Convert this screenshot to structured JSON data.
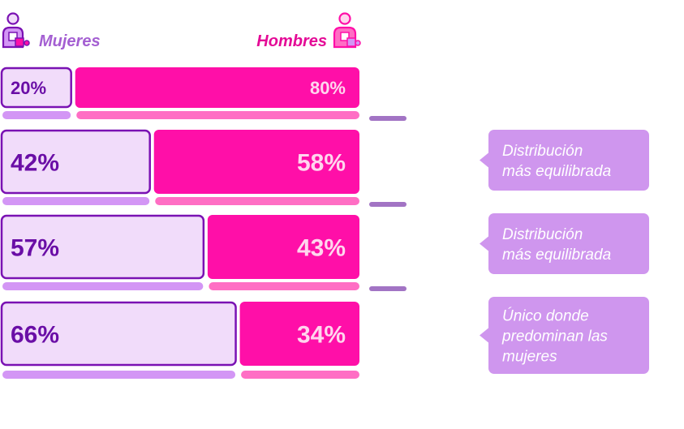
{
  "legend": {
    "women_label": "Mujeres",
    "men_label": "Hombres",
    "women_icon": "woman-person-icon",
    "men_icon": "man-person-icon"
  },
  "colors": {
    "women_fill": "#f1dcfa",
    "women_stroke": "#7a12b3",
    "women_text": "#6a0ea6",
    "women_light": "#d396f5",
    "men_fill": "#ff0fa8",
    "men_light": "#ff6ec4",
    "men_text": "#ffd6ee",
    "note_bg": "#cf96ee",
    "note_text": "#ffffff",
    "connector": "#a274c4"
  },
  "chart_data": {
    "type": "bar",
    "stacked": true,
    "orientation": "horizontal",
    "xlim": [
      0,
      100
    ],
    "rows": [
      {
        "women": 20,
        "men": 80,
        "women_label": "20%",
        "men_label": "80%",
        "note": ""
      },
      {
        "women": 42,
        "men": 58,
        "women_label": "42%",
        "men_label": "58%",
        "note": "Distribución\nmás equilibrada"
      },
      {
        "women": 57,
        "men": 43,
        "women_label": "57%",
        "men_label": "43%",
        "note": "Distribución\nmás equilibrada"
      },
      {
        "women": 66,
        "men": 34,
        "women_label": "66%",
        "men_label": "34%",
        "note": "Único donde\npredominan las\nmujeres"
      }
    ],
    "series": [
      {
        "name": "Mujeres",
        "values": [
          20,
          42,
          57,
          66
        ]
      },
      {
        "name": "Hombres",
        "values": [
          80,
          58,
          43,
          34
        ]
      }
    ]
  }
}
